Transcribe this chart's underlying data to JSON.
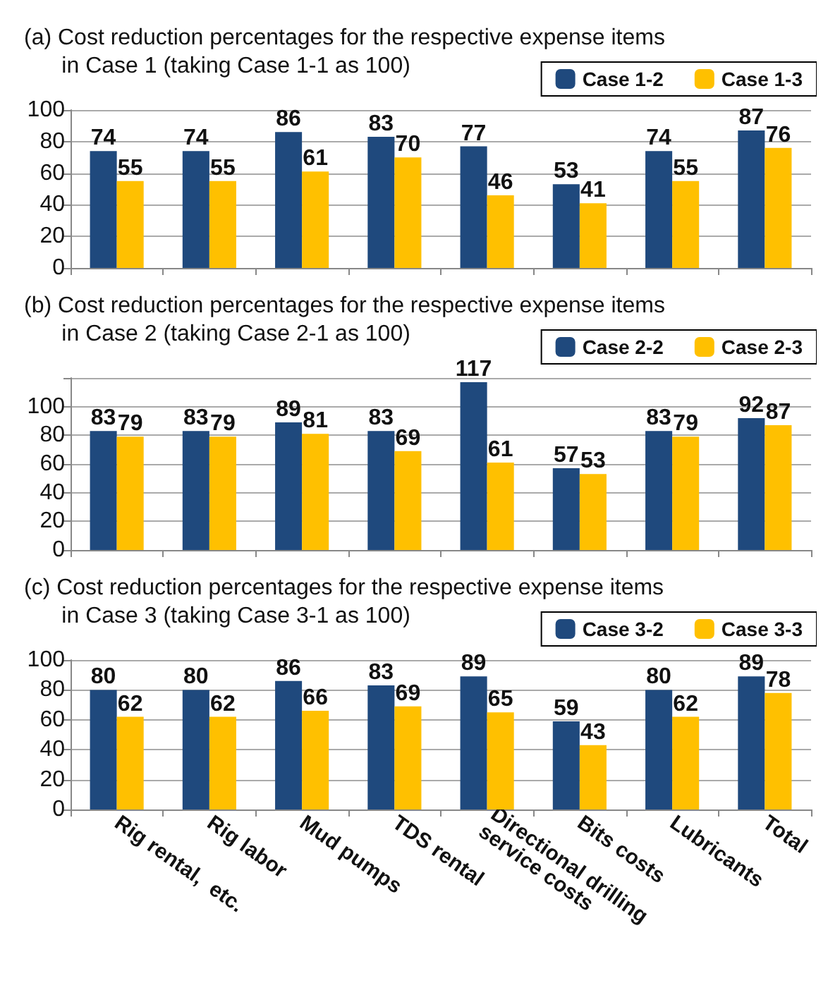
{
  "chart_data": [
    {
      "type": "bar",
      "title": "(a) Cost reduction percentages for the respective expense items\n      in Case 1 (taking Case 1-1 as 100)",
      "categories": [
        "Rig rental,  etc.",
        "Rig labor",
        "Mud pumps",
        "TDS rental",
        "Directional drilling service costs",
        "Bits costs",
        "Lubricants",
        "Total"
      ],
      "series": [
        {
          "name": "Case 1-2",
          "color": "#1f497d",
          "values": [
            74,
            74,
            86,
            83,
            77,
            53,
            74,
            87
          ]
        },
        {
          "name": "Case 1-3",
          "color": "#ffc000",
          "values": [
            55,
            55,
            61,
            70,
            46,
            41,
            55,
            76
          ]
        }
      ],
      "ylim": [
        0,
        100
      ],
      "yticks": [
        0,
        20,
        40,
        60,
        80,
        100
      ],
      "grid": "y",
      "legend": "top right",
      "data_labels": true,
      "tick_labels": "y"
    },
    {
      "type": "bar",
      "title": "(b) Cost reduction percentages for the respective expense items\n      in Case 2 (taking Case 2-1 as 100)",
      "categories": [
        "Rig rental,  etc.",
        "Rig labor",
        "Mud pumps",
        "TDS rental",
        "Directional drilling service costs",
        "Bits costs",
        "Lubricants",
        "Total"
      ],
      "series": [
        {
          "name": "Case 2-2",
          "color": "#1f497d",
          "values": [
            83,
            83,
            89,
            83,
            117,
            57,
            83,
            92
          ]
        },
        {
          "name": "Case 2-3",
          "color": "#ffc000",
          "values": [
            79,
            79,
            81,
            69,
            61,
            53,
            79,
            87
          ]
        }
      ],
      "ylim": [
        0,
        120
      ],
      "yticks": [
        0,
        20,
        40,
        60,
        80,
        100,
        {
          "value": 120,
          "label": null
        }
      ],
      "grid": "y",
      "legend": "top right",
      "data_labels": true,
      "tick_labels": "y"
    },
    {
      "type": "bar",
      "title": "(c) Cost reduction percentages for the respective expense items\n      in Case 3 (taking Case 3-1 as 100)",
      "categories": [
        "Rig rental,  etc.",
        "Rig labor",
        "Mud pumps",
        "TDS rental",
        "Directional drilling service costs",
        "Bits costs",
        "Lubricants",
        "Total"
      ],
      "series": [
        {
          "name": "Case 3-2",
          "color": "#1f497d",
          "values": [
            80,
            80,
            86,
            83,
            89,
            59,
            80,
            89
          ]
        },
        {
          "name": "Case 3-3",
          "color": "#ffc000",
          "values": [
            62,
            62,
            66,
            69,
            65,
            43,
            62,
            78
          ]
        }
      ],
      "ylim": [
        0,
        100
      ],
      "yticks": [
        0,
        20,
        40,
        60,
        80,
        100
      ],
      "grid": "y",
      "legend": "top right",
      "data_labels": true
    }
  ]
}
